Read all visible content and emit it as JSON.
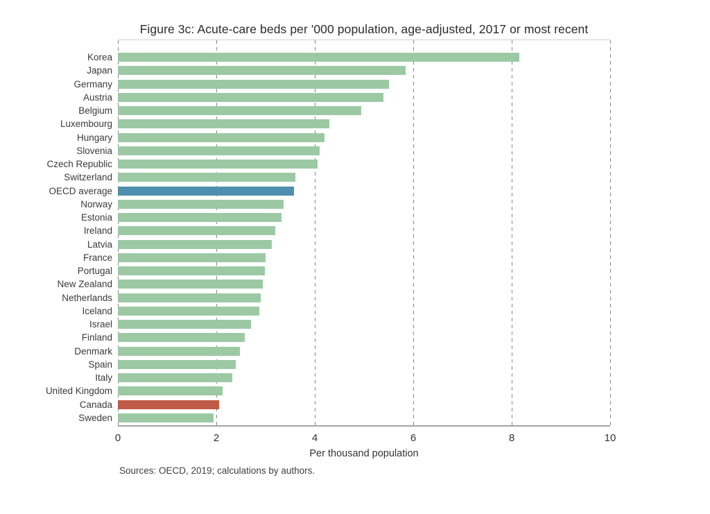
{
  "title": "Figure 3c: Acute-care beds per '000 population, age-adjusted, 2017 or most recent",
  "source": "Sources: OECD, 2019; calculations by authors.",
  "colors": {
    "bar_default": "#9cc9a4",
    "bar_oecd_average": "#4e8faf",
    "bar_canada": "#bf5a46",
    "grid": "#858585",
    "axis": "#a3a3a3",
    "text": "#3a3a3a"
  },
  "chart_data": {
    "type": "bar",
    "orientation": "horizontal",
    "title": "Figure 3c: Acute-care beds per '000 population, age-adjusted, 2017 or most recent",
    "xlabel": "Per thousand population",
    "ylabel": "",
    "xlim": [
      0,
      10
    ],
    "xticks": [
      0,
      2,
      4,
      6,
      8,
      10
    ],
    "grid": "vertical-dashed",
    "legend": "none",
    "categories": [
      "Korea",
      "Japan",
      "Germany",
      "Austria",
      "Belgium",
      "Luxembourg",
      "Hungary",
      "Slovenia",
      "Czech Republic",
      "Switzerland",
      "OECD average",
      "Norway",
      "Estonia",
      "Ireland",
      "Latvia",
      "France",
      "Portugal",
      "New Zealand",
      "Netherlands",
      "Iceland",
      "Israel",
      "Finland",
      "Denmark",
      "Spain",
      "Italy",
      "United Kingdom",
      "Canada",
      "Sweden"
    ],
    "values": [
      8.15,
      5.85,
      5.5,
      5.4,
      4.95,
      4.3,
      4.2,
      4.1,
      4.05,
      3.6,
      3.58,
      3.37,
      3.33,
      3.2,
      3.12,
      3.0,
      2.98,
      2.95,
      2.9,
      2.87,
      2.7,
      2.58,
      2.48,
      2.4,
      2.32,
      2.12,
      2.05,
      1.95
    ],
    "highlights": {
      "OECD average": "#4e8faf",
      "Canada": "#bf5a46"
    }
  }
}
